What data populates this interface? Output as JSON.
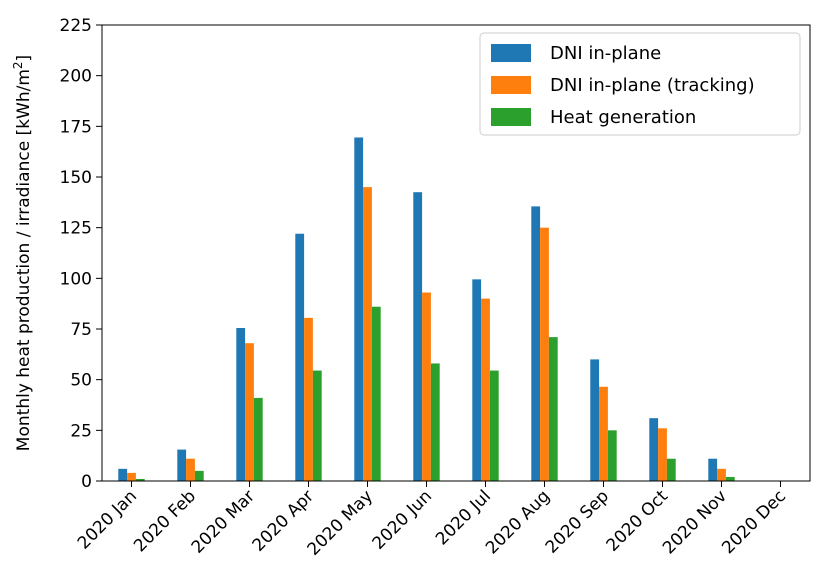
{
  "chart_data": {
    "type": "bar",
    "title": "",
    "xlabel": "",
    "ylabel": "Monthly heat production / irradiance [kWh/m²]",
    "ylim": [
      0,
      225
    ],
    "yticks": [
      0,
      25,
      50,
      75,
      100,
      125,
      150,
      175,
      200,
      225
    ],
    "grid": false,
    "legend_position": "top-right",
    "categories": [
      "2020 Jan",
      "2020 Feb",
      "2020 Mar",
      "2020 Apr",
      "2020 May",
      "2020 Jun",
      "2020 Jul",
      "2020 Aug",
      "2020 Sep",
      "2020 Oct",
      "2020 Nov",
      "2020 Dec"
    ],
    "series": [
      {
        "name": "DNI in-plane",
        "color": "#1f77b4",
        "values": [
          6,
          15.5,
          75.5,
          122,
          169.5,
          142.5,
          99.5,
          135.5,
          60,
          31,
          11,
          0
        ]
      },
      {
        "name": "DNI in-plane (tracking)",
        "color": "#ff7f0e",
        "values": [
          4,
          11,
          68,
          80.5,
          145,
          93,
          90,
          125,
          46.5,
          26,
          6,
          0
        ]
      },
      {
        "name": "Heat generation",
        "color": "#2ca02c",
        "values": [
          1,
          5,
          41,
          54.5,
          86,
          58,
          54.5,
          71,
          25,
          11,
          2,
          0
        ]
      }
    ]
  }
}
